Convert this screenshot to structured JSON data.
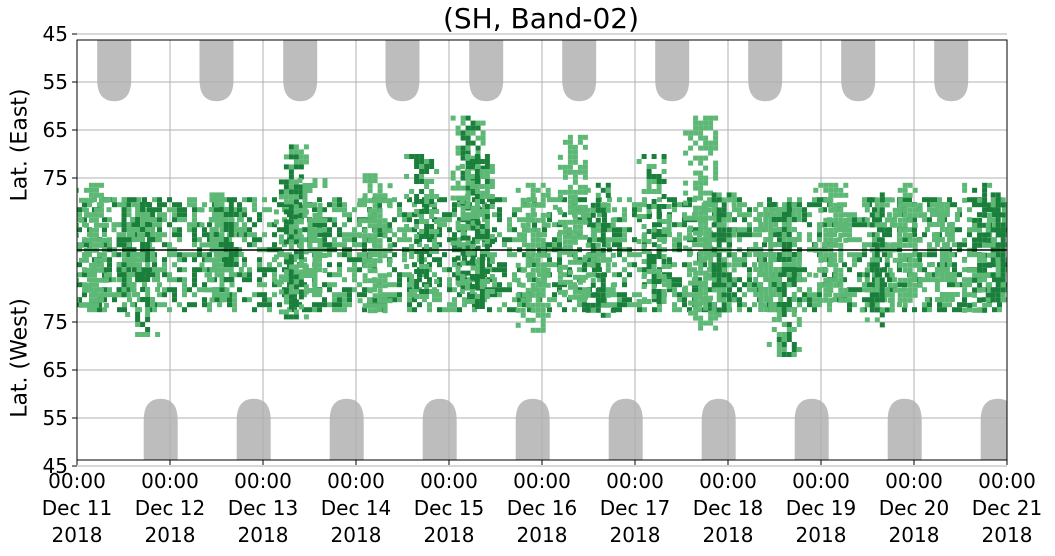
{
  "chart_data": {
    "type": "heatmap",
    "title": "(SH, Band-02)",
    "ylabel_east": "Lat. (East)",
    "ylabel_west": "Lat. (West)",
    "grid": true,
    "x_ticks": [
      {
        "time": "00:00",
        "day": "Dec 11",
        "year": "2018"
      },
      {
        "time": "00:00",
        "day": "Dec 12",
        "year": "2018"
      },
      {
        "time": "00:00",
        "day": "Dec 13",
        "year": "2018"
      },
      {
        "time": "00:00",
        "day": "Dec 14",
        "year": "2018"
      },
      {
        "time": "00:00",
        "day": "Dec 15",
        "year": "2018"
      },
      {
        "time": "00:00",
        "day": "Dec 16",
        "year": "2018"
      },
      {
        "time": "00:00",
        "day": "Dec 17",
        "year": "2018"
      },
      {
        "time": "00:00",
        "day": "Dec 18",
        "year": "2018"
      },
      {
        "time": "00:00",
        "day": "Dec 19",
        "year": "2018"
      },
      {
        "time": "00:00",
        "day": "Dec 20",
        "year": "2018"
      },
      {
        "time": "00:00",
        "day": "Dec 21",
        "year": "2018"
      }
    ],
    "y_ticks_east": [
      "45",
      "55",
      "65",
      "75"
    ],
    "y_ticks_west": [
      "75",
      "65",
      "55",
      "45"
    ],
    "colors": {
      "dark_green": "#1a7f3a",
      "light_green": "#5cb874",
      "gray": "#bdbdbd",
      "grid": "#b0b0b0"
    },
    "east_blocked_days": [
      0.4,
      1.5,
      2.4,
      3.5,
      4.4,
      5.4,
      6.4,
      7.4,
      8.4,
      9.4
    ],
    "west_blocked_days": [
      0.9,
      1.9,
      2.9,
      3.9,
      4.9,
      5.9,
      6.9,
      7.9,
      8.9,
      9.9
    ],
    "activity_blobs": [
      {
        "day": 0.15,
        "lat_east": 76,
        "lat_west": 78,
        "intensity": "light"
      },
      {
        "day": 0.5,
        "lat_east": 79,
        "lat_west": 81,
        "intensity": "dark"
      },
      {
        "day": 0.7,
        "lat_east": 80,
        "lat_west": 72,
        "intensity": "dark"
      },
      {
        "day": 1.5,
        "lat_east": 78,
        "lat_west": 80,
        "intensity": "light"
      },
      {
        "day": 1.6,
        "lat_east": 80,
        "lat_west": 84,
        "intensity": "dark"
      },
      {
        "day": 2.3,
        "lat_east": 68,
        "lat_west": 76,
        "intensity": "dark"
      },
      {
        "day": 2.5,
        "lat_east": 75,
        "lat_west": 82,
        "intensity": "light"
      },
      {
        "day": 3.2,
        "lat_east": 74,
        "lat_west": 77,
        "intensity": "light"
      },
      {
        "day": 3.7,
        "lat_east": 70,
        "lat_west": 80,
        "intensity": "dark"
      },
      {
        "day": 4.2,
        "lat_east": 62,
        "lat_west": 82,
        "intensity": "dark"
      },
      {
        "day": 4.3,
        "lat_east": 70,
        "lat_west": 78,
        "intensity": "dark"
      },
      {
        "day": 4.9,
        "lat_east": 76,
        "lat_west": 73,
        "intensity": "light"
      },
      {
        "day": 5.3,
        "lat_east": 66,
        "lat_west": 80,
        "intensity": "light"
      },
      {
        "day": 5.6,
        "lat_east": 76,
        "lat_west": 76,
        "intensity": "dark"
      },
      {
        "day": 6.2,
        "lat_east": 70,
        "lat_west": 79,
        "intensity": "dark"
      },
      {
        "day": 6.7,
        "lat_east": 62,
        "lat_west": 74,
        "intensity": "light"
      },
      {
        "day": 6.9,
        "lat_east": 78,
        "lat_west": 76,
        "intensity": "dark"
      },
      {
        "day": 7.4,
        "lat_east": 80,
        "lat_west": 78,
        "intensity": "light"
      },
      {
        "day": 7.6,
        "lat_east": 80,
        "lat_west": 68,
        "intensity": "dark"
      },
      {
        "day": 8.1,
        "lat_east": 76,
        "lat_west": 80,
        "intensity": "light"
      },
      {
        "day": 8.6,
        "lat_east": 78,
        "lat_west": 74,
        "intensity": "dark"
      },
      {
        "day": 8.9,
        "lat_east": 76,
        "lat_west": 78,
        "intensity": "light"
      },
      {
        "day": 9.3,
        "lat_east": 80,
        "lat_west": 80,
        "intensity": "light"
      },
      {
        "day": 9.7,
        "lat_east": 76,
        "lat_west": 77,
        "intensity": "dark"
      },
      {
        "day": 9.9,
        "lat_east": 78,
        "lat_west": 80,
        "intensity": "dark"
      }
    ]
  }
}
